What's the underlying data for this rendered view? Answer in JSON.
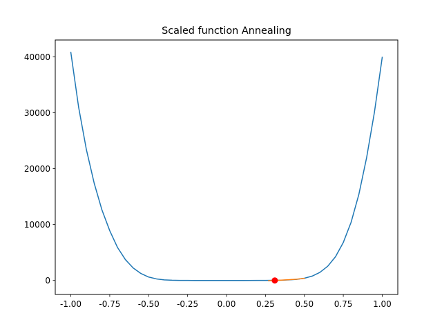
{
  "chart_data": {
    "type": "line",
    "title": "Scaled function Annealing",
    "xlabel": "",
    "ylabel": "",
    "xlim": [
      -1.1,
      1.1
    ],
    "ylim": [
      -2500,
      43000
    ],
    "xticks": [
      "-1.00",
      "-0.75",
      "-0.50",
      "-0.25",
      "0.00",
      "0.25",
      "0.50",
      "0.75",
      "1.00"
    ],
    "xtick_values": [
      -1.0,
      -0.75,
      -0.5,
      -0.25,
      0.0,
      0.25,
      0.5,
      0.75,
      1.0
    ],
    "yticks": [
      "0",
      "10000",
      "20000",
      "30000",
      "40000"
    ],
    "ytick_values": [
      0,
      10000,
      20000,
      30000,
      40000
    ],
    "grid": false,
    "series": [
      {
        "color": "#1f77b4",
        "x": [
          -1.0,
          -0.95,
          -0.9,
          -0.85,
          -0.8,
          -0.75,
          -0.7,
          -0.65,
          -0.6,
          -0.55,
          -0.5,
          -0.45,
          -0.4,
          -0.35,
          -0.3,
          -0.25,
          -0.2,
          -0.1,
          0.0,
          0.1,
          0.2,
          0.25,
          0.3,
          0.35,
          0.4,
          0.45,
          0.5,
          0.55,
          0.6,
          0.65,
          0.7,
          0.75,
          0.8,
          0.85,
          0.9,
          0.95,
          1.0
        ],
        "y": [
          40800,
          31000,
          23400,
          17400,
          12600,
          8900,
          5900,
          3750,
          2250,
          1250,
          610,
          280,
          110,
          40,
          15,
          5,
          3,
          1,
          0,
          1,
          5,
          10,
          22,
          50,
          100,
          200,
          400,
          780,
          1450,
          2550,
          4250,
          6800,
          10400,
          15400,
          22000,
          30100,
          39900
        ]
      },
      {
        "color": "#ff7f0e",
        "x": [
          0.27,
          0.31,
          0.35,
          0.4,
          0.45,
          0.5
        ],
        "y": [
          -50,
          0,
          60,
          130,
          230,
          380
        ]
      },
      {
        "type": "scatter",
        "color": "#ff0000",
        "x": [
          0.31
        ],
        "y": [
          0
        ]
      }
    ]
  }
}
